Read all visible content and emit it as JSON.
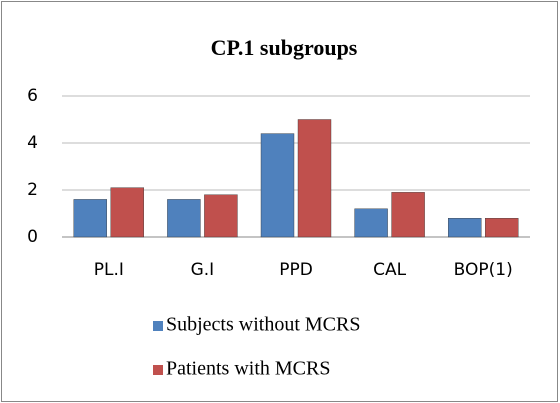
{
  "chart_data": {
    "type": "bar",
    "title": "CP.1 subgroups",
    "categories": [
      "PL.I",
      "G.I",
      "PPD",
      "CAL",
      "BOP(1)"
    ],
    "series": [
      {
        "name": "Subjects without MCRS",
        "color": "#4f81bd",
        "values": [
          1.6,
          1.6,
          4.4,
          1.2,
          0.8
        ]
      },
      {
        "name": "Patients with MCRS",
        "color": "#c0504d",
        "values": [
          2.1,
          1.8,
          5.0,
          1.9,
          0.8
        ]
      }
    ],
    "ylim": [
      0,
      6
    ],
    "yticks": [
      0,
      2,
      4,
      6
    ],
    "grid": true,
    "legend": "bottom"
  }
}
